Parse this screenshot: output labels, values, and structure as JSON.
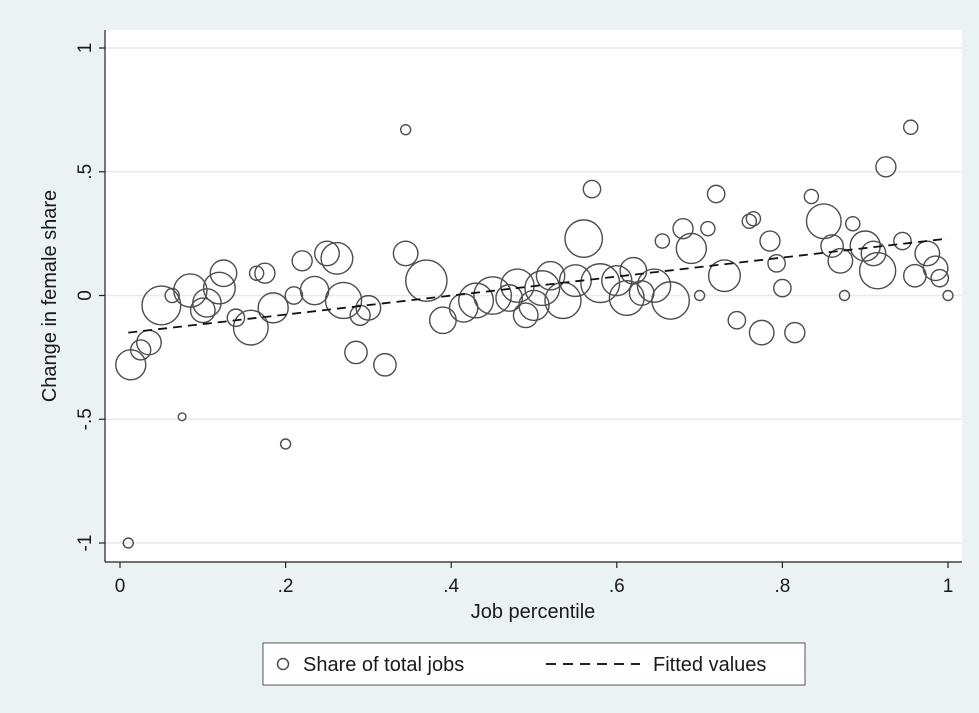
{
  "chart_data": {
    "type": "scatter",
    "title": "",
    "xlabel": "Job percentile",
    "ylabel": "Change in female share",
    "xlim": [
      0,
      1
    ],
    "ylim": [
      -1,
      1
    ],
    "xticks": [
      0,
      0.2,
      0.4,
      0.6,
      0.8,
      1
    ],
    "xtick_labels": [
      "0",
      ".2",
      ".4",
      ".6",
      ".8",
      "1"
    ],
    "yticks": [
      -1,
      -0.5,
      0,
      0.5,
      1
    ],
    "ytick_labels": [
      "-1",
      "-.5",
      "0",
      ".5",
      "1"
    ],
    "grid": "horizontal",
    "legend_position": "bottom",
    "background": "#eaf2f3",
    "plot_background": "#ffffff",
    "marker_color": "#4d4d4d",
    "series": [
      {
        "name": "Share of total jobs",
        "marker": "hollow-circle-weighted",
        "points": [
          [
            0.01,
            -1.0,
            1
          ],
          [
            0.013,
            -0.28,
            9
          ],
          [
            0.025,
            -0.22,
            4
          ],
          [
            0.035,
            -0.19,
            6
          ],
          [
            0.05,
            -0.04,
            15
          ],
          [
            0.063,
            0.0,
            2
          ],
          [
            0.075,
            -0.49,
            0.6
          ],
          [
            0.085,
            0.02,
            11
          ],
          [
            0.1,
            -0.06,
            6
          ],
          [
            0.105,
            -0.03,
            8
          ],
          [
            0.12,
            0.03,
            10
          ],
          [
            0.125,
            0.09,
            7
          ],
          [
            0.14,
            -0.09,
            3
          ],
          [
            0.158,
            -0.13,
            12
          ],
          [
            0.165,
            0.09,
            2
          ],
          [
            0.175,
            0.09,
            4
          ],
          [
            0.185,
            -0.05,
            9
          ],
          [
            0.2,
            -0.6,
            1
          ],
          [
            0.21,
            0.0,
            3
          ],
          [
            0.22,
            0.14,
            4
          ],
          [
            0.235,
            0.02,
            8
          ],
          [
            0.25,
            0.17,
            6
          ],
          [
            0.262,
            0.15,
            10
          ],
          [
            0.27,
            -0.02,
            13
          ],
          [
            0.285,
            -0.23,
            5
          ],
          [
            0.29,
            -0.08,
            4
          ],
          [
            0.3,
            -0.05,
            6
          ],
          [
            0.32,
            -0.28,
            5
          ],
          [
            0.345,
            0.67,
            1
          ],
          [
            0.345,
            0.17,
            6
          ],
          [
            0.37,
            0.06,
            17
          ],
          [
            0.39,
            -0.1,
            7
          ],
          [
            0.415,
            -0.05,
            8
          ],
          [
            0.43,
            -0.02,
            12
          ],
          [
            0.45,
            0.0,
            14
          ],
          [
            0.47,
            -0.01,
            7
          ],
          [
            0.48,
            0.04,
            11
          ],
          [
            0.49,
            -0.08,
            6
          ],
          [
            0.5,
            -0.04,
            9
          ],
          [
            0.51,
            0.03,
            12
          ],
          [
            0.52,
            0.08,
            8
          ],
          [
            0.535,
            -0.02,
            13
          ],
          [
            0.55,
            0.06,
            10
          ],
          [
            0.56,
            0.23,
            14
          ],
          [
            0.57,
            0.43,
            3
          ],
          [
            0.58,
            0.05,
            15
          ],
          [
            0.6,
            0.06,
            9
          ],
          [
            0.612,
            -0.01,
            12
          ],
          [
            0.62,
            0.1,
            7
          ],
          [
            0.63,
            0.01,
            6
          ],
          [
            0.645,
            0.04,
            11
          ],
          [
            0.655,
            0.22,
            2
          ],
          [
            0.665,
            -0.02,
            14
          ],
          [
            0.68,
            0.27,
            4
          ],
          [
            0.69,
            0.19,
            9
          ],
          [
            0.7,
            0.0,
            1
          ],
          [
            0.71,
            0.27,
            2
          ],
          [
            0.72,
            0.41,
            3
          ],
          [
            0.73,
            0.08,
            10
          ],
          [
            0.745,
            -0.1,
            3
          ],
          [
            0.76,
            0.3,
            2
          ],
          [
            0.765,
            0.31,
            2
          ],
          [
            0.775,
            -0.15,
            6
          ],
          [
            0.785,
            0.22,
            4
          ],
          [
            0.793,
            0.13,
            3
          ],
          [
            0.8,
            0.03,
            3
          ],
          [
            0.815,
            -0.15,
            4
          ],
          [
            0.835,
            0.4,
            2
          ],
          [
            0.85,
            0.3,
            12
          ],
          [
            0.86,
            0.2,
            5
          ],
          [
            0.87,
            0.14,
            6
          ],
          [
            0.875,
            0.0,
            1
          ],
          [
            0.885,
            0.29,
            2
          ],
          [
            0.9,
            0.2,
            9
          ],
          [
            0.91,
            0.17,
            6
          ],
          [
            0.915,
            0.1,
            13
          ],
          [
            0.925,
            0.52,
            4
          ],
          [
            0.945,
            0.22,
            3
          ],
          [
            0.955,
            0.68,
            2
          ],
          [
            0.96,
            0.08,
            5
          ],
          [
            0.975,
            0.17,
            6
          ],
          [
            0.985,
            0.11,
            6
          ],
          [
            0.99,
            0.07,
            3
          ],
          [
            1.0,
            0.0,
            1
          ]
        ]
      },
      {
        "name": "Fitted values",
        "line_style": "dashed",
        "points": [
          [
            0.01,
            -0.15
          ],
          [
            1.0,
            0.23
          ]
        ]
      }
    ]
  }
}
